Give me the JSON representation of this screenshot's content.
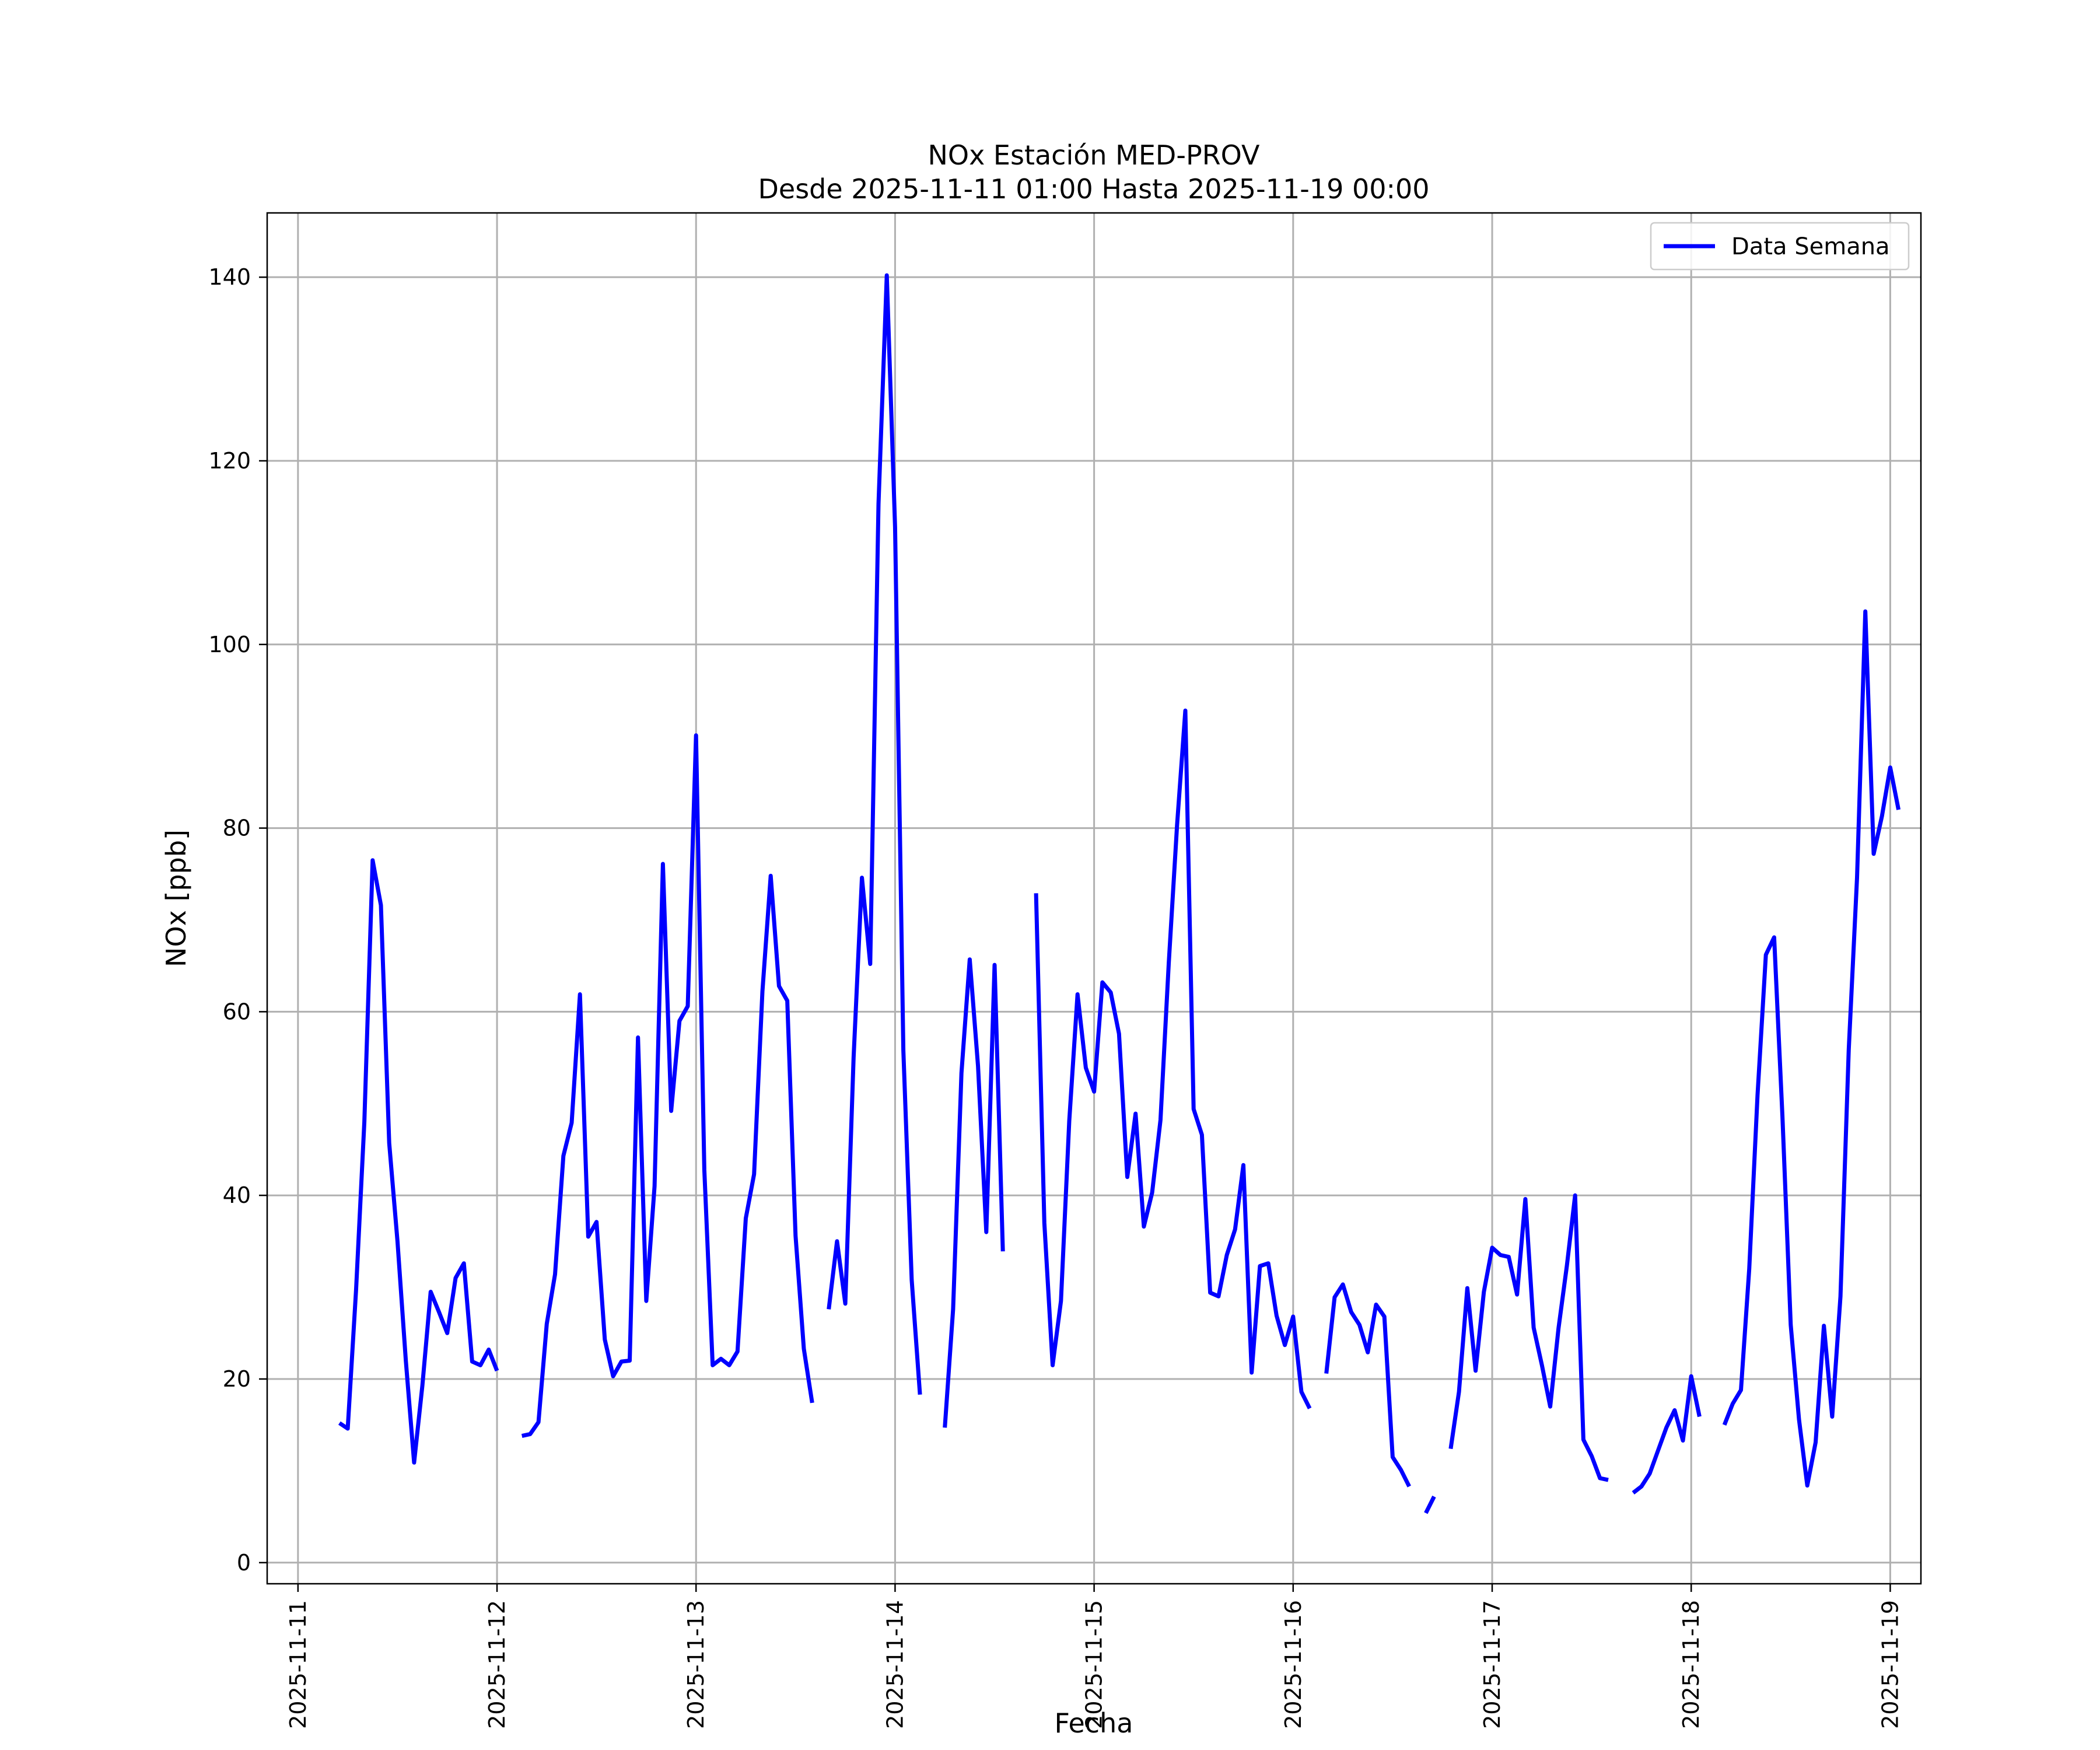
{
  "chart_data": {
    "type": "line",
    "title": "NOx Estación MED-PROV",
    "subtitle": "Desde 2025-11-11 01:00 Hasta 2025-11-19 00:00",
    "xlabel": "Fecha",
    "ylabel": "NOx [ppb]",
    "xlim": [
      "2025-11-10T20:17",
      "2025-11-19T03:42"
    ],
    "ylim": [
      -2.3,
      147
    ],
    "x_ticks": [
      "2025-11-11",
      "2025-11-12",
      "2025-11-13",
      "2025-11-14",
      "2025-11-15",
      "2025-11-16",
      "2025-11-17",
      "2025-11-18",
      "2025-11-19"
    ],
    "y_ticks": [
      0,
      20,
      40,
      60,
      80,
      100,
      120,
      140
    ],
    "grid": true,
    "legend": {
      "position": "top-right",
      "entries": [
        "Data Semana"
      ]
    },
    "series": [
      {
        "name": "Data Semana",
        "color": "#0000ff",
        "x_start": "2025-11-11T01:00",
        "step_hours": 1,
        "values": [
          null,
          null,
          null,
          null,
          15.2,
          14.6,
          29.7,
          48.0,
          76.5,
          71.6,
          45.7,
          35.0,
          22.0,
          10.9,
          19.3,
          29.5,
          27.3,
          25.0,
          31.0,
          32.6,
          21.9,
          21.5,
          23.2,
          20.9,
          null,
          null,
          13.8,
          14.0,
          15.3,
          26.0,
          31.4,
          44.3,
          47.9,
          61.9,
          35.5,
          37.1,
          24.3,
          20.3,
          21.9,
          22.0,
          57.2,
          28.5,
          41.0,
          76.1,
          49.2,
          59.0,
          60.6,
          90.1,
          42.8,
          21.5,
          22.2,
          21.5,
          23.0,
          37.5,
          42.3,
          62.2,
          74.8,
          62.8,
          61.2,
          35.6,
          23.3,
          17.4,
          null,
          27.6,
          35.0,
          28.2,
          55.0,
          74.6,
          65.2,
          115.3,
          140.2,
          112.8,
          55.8,
          30.8,
          18.3,
          null,
          null,
          14.7,
          27.6,
          53.3,
          65.7,
          54.1,
          36.0,
          65.1,
          33.9,
          null,
          null,
          null,
          72.9,
          37.0,
          21.5,
          28.5,
          48.1,
          61.9,
          53.9,
          51.3,
          63.2,
          62.1,
          57.6,
          42.0,
          48.9,
          36.6,
          40.3,
          48.2,
          65.3,
          80.3,
          92.8,
          49.4,
          46.6,
          29.4,
          29.0,
          33.5,
          36.3,
          43.3,
          20.7,
          32.3,
          32.6,
          26.9,
          23.7,
          26.8,
          18.6,
          16.8,
          null,
          20.6,
          28.9,
          30.3,
          27.3,
          25.9,
          22.9,
          28.1,
          26.8,
          11.5,
          10.1,
          8.3,
          null,
          5.4,
          7.2,
          null,
          12.4,
          18.6,
          29.9,
          20.9,
          29.5,
          34.3,
          33.5,
          33.3,
          29.2,
          39.6,
          25.6,
          21.5,
          17.0,
          25.5,
          32.3,
          40.0,
          13.4,
          11.6,
          9.2,
          9.0,
          null,
          null,
          7.6,
          8.3,
          9.7,
          12.2,
          14.7,
          16.6,
          13.3,
          20.3,
          15.9,
          null,
          null,
          15.0,
          17.3,
          18.8,
          32.0,
          50.9,
          66.2,
          68.1,
          48.6,
          25.9,
          15.6,
          8.4,
          13.1,
          25.8,
          15.9,
          29.0,
          55.9,
          74.6,
          103.6,
          77.2,
          81.3,
          86.6,
          82.0
        ]
      }
    ]
  }
}
